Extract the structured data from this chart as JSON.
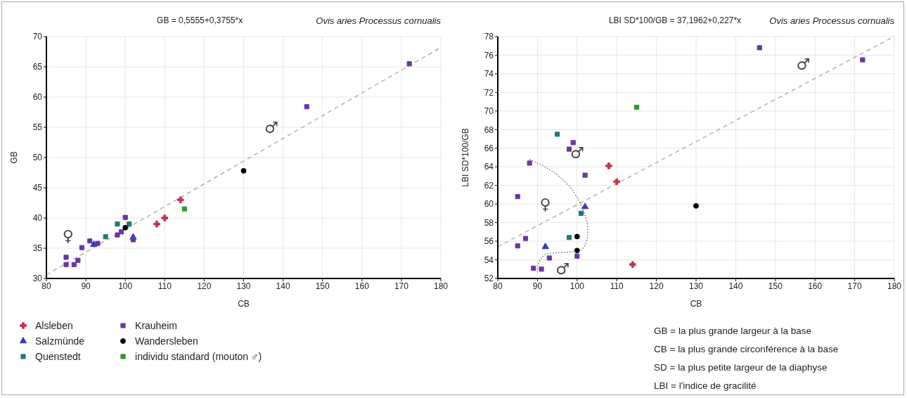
{
  "chart_data": [
    {
      "type": "scatter",
      "title": "GB = 0,5555+0,3755*x",
      "subtitle": "Ovis aries Processus cornualis",
      "xlabel": "CB",
      "ylabel": "GB",
      "xlim": [
        80,
        180
      ],
      "xticks": [
        80,
        90,
        100,
        110,
        120,
        130,
        140,
        150,
        160,
        170,
        180
      ],
      "ylim": [
        30,
        70
      ],
      "yticks": [
        30,
        35,
        40,
        45,
        50,
        55,
        60,
        65,
        70
      ],
      "grid": true,
      "legend": "bottom",
      "series": [
        {
          "name": "Alsleben",
          "color": "#c8344c",
          "marker": "cross",
          "x": [
            108,
            110,
            114
          ],
          "values": [
            39.0,
            40.0,
            43.0
          ]
        },
        {
          "name": "Salzmünde",
          "color": "#3a3db4",
          "marker": "triangle",
          "x": [
            92,
            102
          ],
          "values": [
            35.6,
            36.8
          ]
        },
        {
          "name": "Quenstedt",
          "color": "#1f7a78",
          "marker": "square",
          "x": [
            95,
            98,
            101
          ],
          "values": [
            36.9,
            39.0,
            39.0
          ]
        },
        {
          "name": "Krauheim",
          "color": "#6a35a8",
          "marker": "square",
          "x": [
            85,
            85,
            87,
            88,
            89,
            91,
            93,
            98,
            99,
            100,
            102,
            146,
            172
          ],
          "values": [
            33.5,
            32.3,
            32.3,
            33.0,
            35.1,
            36.2,
            35.8,
            37.2,
            37.7,
            40.1,
            36.4,
            58.4,
            65.5
          ]
        },
        {
          "name": "Wandersleben",
          "color": "#000000",
          "marker": "circle",
          "x": [
            100,
            130
          ],
          "values": [
            38.4,
            47.8
          ]
        },
        {
          "name": "individu standard (mouton ♂)",
          "color": "#2e9a2e",
          "marker": "square",
          "x": [
            115
          ],
          "values": [
            41.5
          ]
        },
        {
          "type": "line",
          "color": "#b0b0b0",
          "line_style": "dashed",
          "marker": "none",
          "x": [
            80,
            180
          ],
          "values": [
            30.6,
            68.2
          ]
        }
      ],
      "annotations": [
        "♀",
        "♂"
      ]
    },
    {
      "type": "scatter",
      "title": "LBI SD*100/GB = 37,1962+0,227*x",
      "subtitle": "Ovis aries Processus cornualis",
      "xlabel": "CB",
      "ylabel": "LBI SD*100/GB",
      "xlim": [
        80,
        180
      ],
      "xticks": [
        80,
        90,
        100,
        110,
        120,
        130,
        140,
        150,
        160,
        170,
        180
      ],
      "ylim": [
        52,
        78
      ],
      "yticks": [
        52,
        54,
        56,
        58,
        60,
        62,
        64,
        66,
        68,
        70,
        72,
        74,
        76,
        78
      ],
      "grid": true,
      "series": [
        {
          "color": "#c8344c",
          "marker": "cross",
          "x": [
            108,
            110,
            114
          ],
          "values": [
            64.1,
            62.4,
            53.5
          ]
        },
        {
          "color": "#3a3db4",
          "marker": "triangle",
          "x": [
            92,
            102
          ],
          "values": [
            55.4,
            59.7
          ]
        },
        {
          "color": "#1f7a78",
          "marker": "square",
          "x": [
            95,
            98,
            101
          ],
          "values": [
            67.5,
            56.4,
            59.0
          ]
        },
        {
          "color": "#6a35a8",
          "marker": "square",
          "x": [
            85,
            85,
            87,
            88,
            89,
            91,
            93,
            98,
            99,
            100,
            102,
            146,
            172
          ],
          "values": [
            60.8,
            55.5,
            56.3,
            64.4,
            53.1,
            53.0,
            54.2,
            65.9,
            66.6,
            54.4,
            63.1,
            76.8,
            75.5
          ]
        },
        {
          "color": "#000000",
          "marker": "circle",
          "x": [
            100,
            100,
            130
          ],
          "values": [
            56.5,
            55.0,
            59.8
          ]
        },
        {
          "color": "#2e9a2e",
          "marker": "square",
          "x": [
            115
          ],
          "values": [
            70.4
          ]
        },
        {
          "type": "line",
          "color": "#b0b0b0",
          "line_style": "dashed",
          "marker": "none",
          "x": [
            80,
            179
          ],
          "values": [
            55.4,
            77.8
          ]
        }
      ],
      "annotations": [
        "♂",
        "♂",
        "♀",
        {
          "text": "♂",
          "x": 91,
          "y": 53.0
        },
        "GB = la plus grande largeur à la base",
        "CB = la plus grande circonférence à la base",
        "SD = la plus petite largeur de la diaphyse",
        "LBI = l'indice de gracilité"
      ]
    }
  ]
}
